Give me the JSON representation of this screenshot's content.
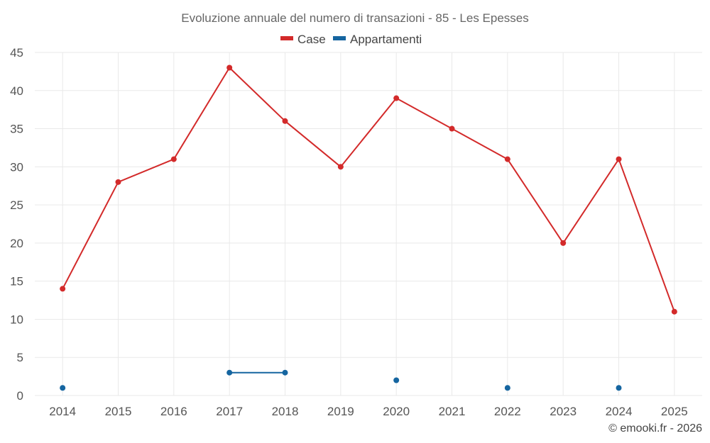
{
  "chart_data": {
    "type": "line",
    "title": "Evoluzione annuale del numero di transazioni - 85 - Les Epesses",
    "xlabel": "",
    "ylabel": "",
    "categories": [
      "2014",
      "2015",
      "2016",
      "2017",
      "2018",
      "2019",
      "2020",
      "2021",
      "2022",
      "2023",
      "2024",
      "2025"
    ],
    "ylim": [
      0,
      45
    ],
    "yticks": [
      "0",
      "5",
      "10",
      "15",
      "20",
      "25",
      "30",
      "35",
      "40",
      "45"
    ],
    "grid": true,
    "legend_position": "top-center",
    "series": [
      {
        "name": "Case",
        "color": "#d32a2a",
        "values": [
          14,
          28,
          31,
          43,
          36,
          30,
          39,
          35,
          31,
          20,
          31,
          11
        ]
      },
      {
        "name": "Appartamenti",
        "color": "#1565a0",
        "values": [
          1,
          null,
          null,
          3,
          3,
          null,
          2,
          null,
          1,
          null,
          1,
          null
        ]
      }
    ]
  },
  "credit": "© emooki.fr - 2026"
}
